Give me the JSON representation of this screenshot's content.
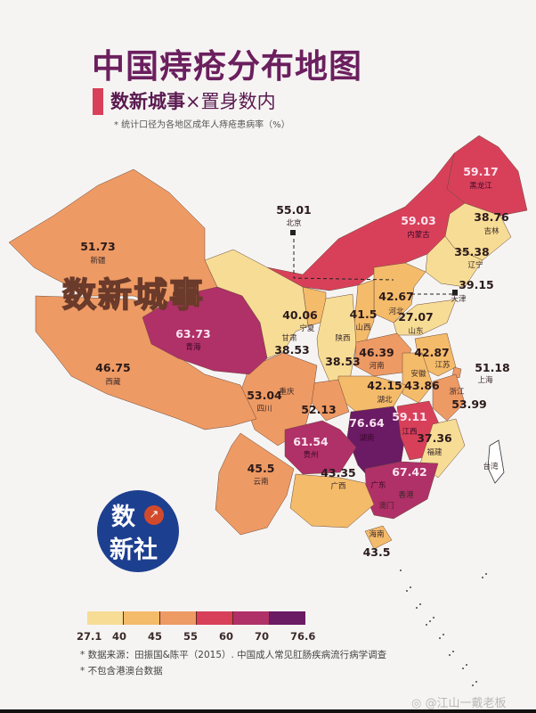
{
  "title": "中国痔疮分布地图",
  "subtitle": {
    "brand": "数新城事",
    "cross": "×",
    "partner": "置身数内"
  },
  "note": "* 统计口径为各地区成年人痔疮患病率（%）",
  "watermark_text": "数新城事",
  "logo": {
    "line1": "数",
    "line2": "新社",
    "icon": "trend-chart-icon"
  },
  "legend": {
    "breaks": [
      "27.1",
      "40",
      "45",
      "55",
      "60",
      "70",
      "76.6"
    ],
    "colors": [
      "#f7dc95",
      "#f4bb6a",
      "#ee9a64",
      "#d8405a",
      "#b03068",
      "#6b1a64"
    ]
  },
  "source": "* 数据来源：田振国&陈平（2015）. 中国成人常见肛肠疾病流行病学调查",
  "exclusion": "* 不包含港澳台数据",
  "weibo_handle": "@江山一戴老板",
  "provinces": [
    {
      "name": "黑龙江",
      "value": "59.17"
    },
    {
      "name": "内蒙古",
      "value": "59.03"
    },
    {
      "name": "吉林",
      "value": "38.76"
    },
    {
      "name": "辽宁",
      "value": "35.38"
    },
    {
      "name": "北京",
      "value": "55.01"
    },
    {
      "name": "天津",
      "value": "39.15"
    },
    {
      "name": "河北",
      "value": "42.67"
    },
    {
      "name": "山西",
      "value": "41.5"
    },
    {
      "name": "山东",
      "value": "27.07"
    },
    {
      "name": "宁夏",
      "value": "40.06"
    },
    {
      "name": "甘肃",
      "value": "38.53"
    },
    {
      "name": "陕西",
      "value": "38.53"
    },
    {
      "name": "河南",
      "value": "46.39"
    },
    {
      "name": "江苏",
      "value": "42.87"
    },
    {
      "name": "安徽",
      "value": "43.86"
    },
    {
      "name": "上海",
      "value": "51.18"
    },
    {
      "name": "浙江",
      "value": "53.99"
    },
    {
      "name": "湖北",
      "value": "42.15"
    },
    {
      "name": "重庆",
      "value": "52.13"
    },
    {
      "name": "四川",
      "value": "53.04"
    },
    {
      "name": "湖南",
      "value": "76.64"
    },
    {
      "name": "江西",
      "value": "59.11"
    },
    {
      "name": "福建",
      "value": "37.36"
    },
    {
      "name": "贵州",
      "value": "61.54"
    },
    {
      "name": "广东",
      "value": "67.42"
    },
    {
      "name": "广西",
      "value": "43.35"
    },
    {
      "name": "云南",
      "value": "45.5"
    },
    {
      "name": "海南",
      "value": "43.5"
    },
    {
      "name": "新疆",
      "value": "51.73"
    },
    {
      "name": "西藏",
      "value": "46.75"
    },
    {
      "name": "青海",
      "value": "63.73"
    }
  ],
  "no_data_regions": [
    {
      "name": "台湾"
    },
    {
      "name": "香港"
    },
    {
      "name": "澳门"
    }
  ]
}
